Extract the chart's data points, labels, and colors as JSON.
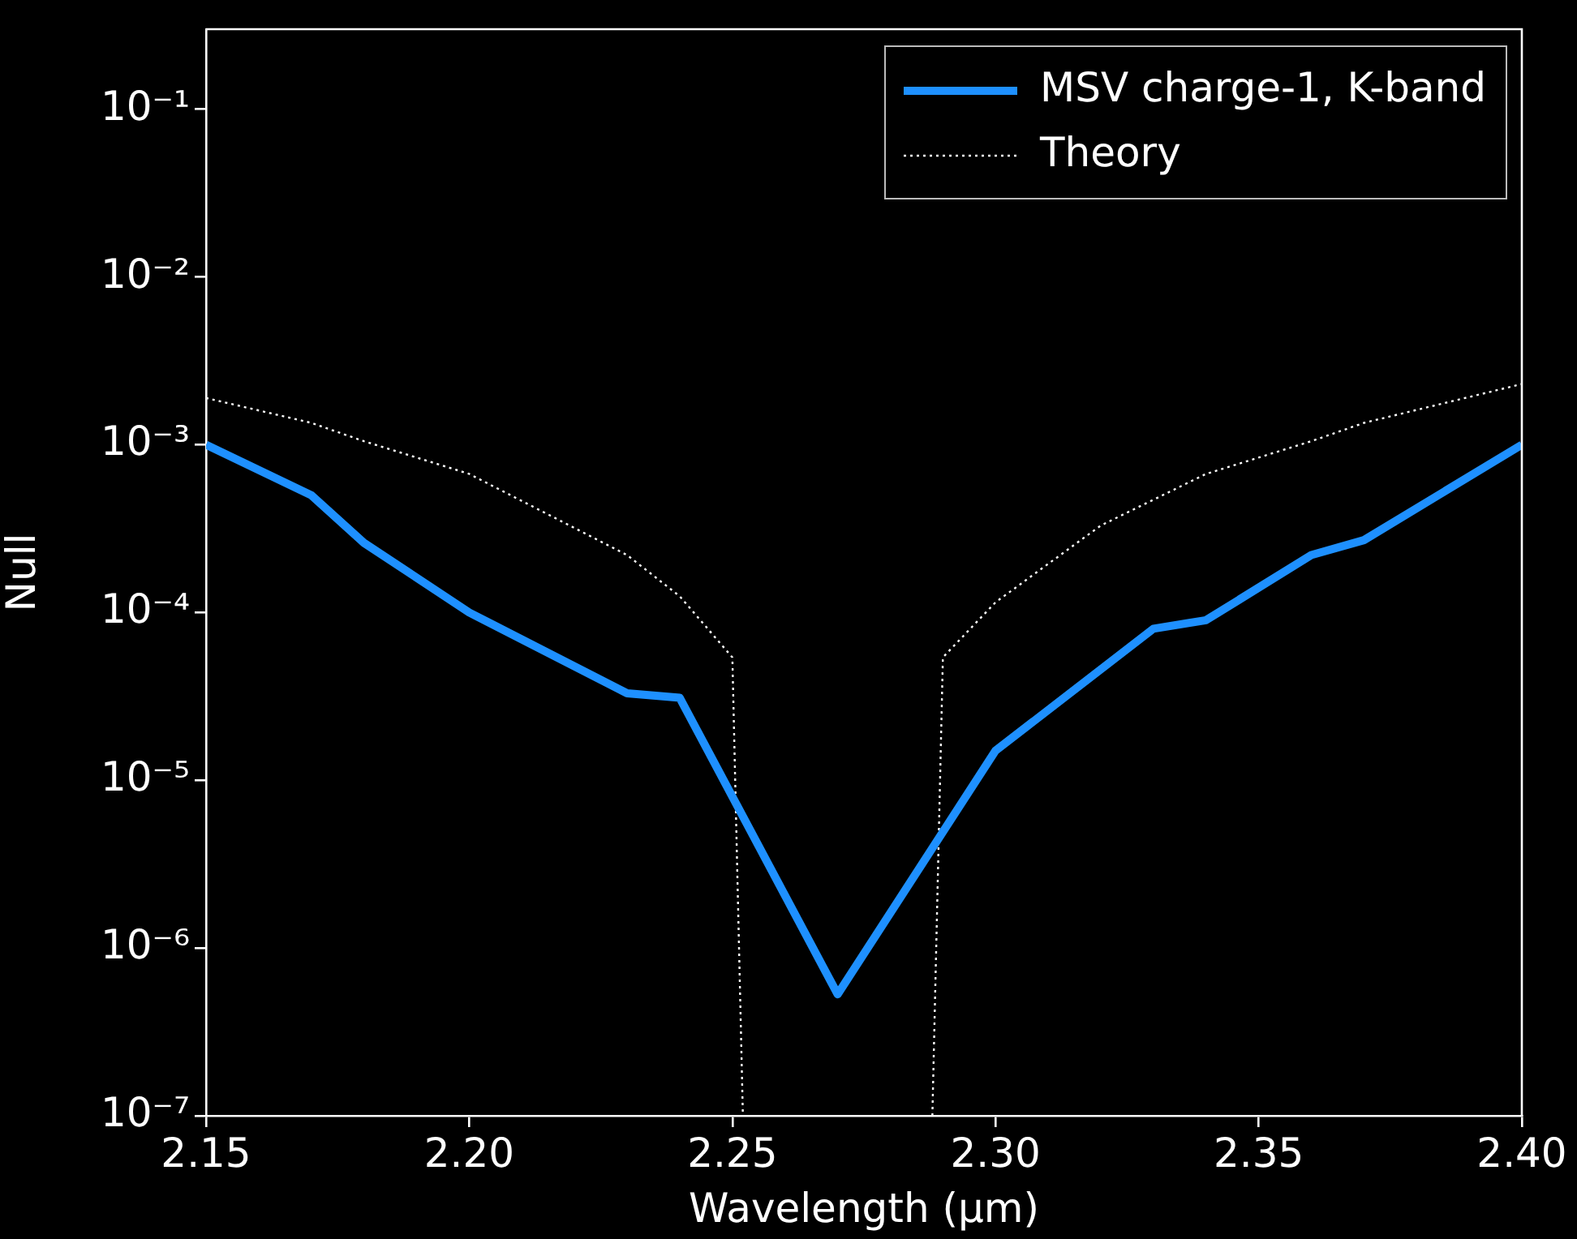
{
  "chart_data": {
    "type": "line",
    "xlabel": "Wavelength (μm)",
    "ylabel": "Null",
    "log": "y",
    "grid": false,
    "legend": "top right",
    "xlim": [
      2.15,
      2.4
    ],
    "xticks": [
      {
        "value": 2.15,
        "label": "2.15"
      },
      {
        "value": 2.2,
        "label": "2.20"
      },
      {
        "value": 2.25,
        "label": "2.25"
      },
      {
        "value": 2.3,
        "label": "2.30"
      },
      {
        "value": 2.35,
        "label": "2.35"
      },
      {
        "value": 2.4,
        "label": "2.40"
      }
    ],
    "ylim": [
      1e-07,
      0.3
    ],
    "yticks": [
      {
        "value": 1e-07,
        "label": "10⁻⁷"
      },
      {
        "value": 1e-06,
        "label": "10⁻⁶"
      },
      {
        "value": 1e-05,
        "label": "10⁻⁵"
      },
      {
        "value": 0.0001,
        "label": "10⁻⁴"
      },
      {
        "value": 0.001,
        "label": "10⁻³"
      },
      {
        "value": 0.01,
        "label": "10⁻²"
      },
      {
        "value": 0.1,
        "label": "10⁻¹"
      }
    ],
    "series": [
      {
        "name": "MSV charge-1, K-band",
        "color": "#1e90ff",
        "line_style": "solid",
        "x": [
          2.15,
          2.17,
          2.18,
          2.2,
          2.23,
          2.24,
          2.27,
          2.3,
          2.33,
          2.34,
          2.36,
          2.37,
          2.4
        ],
        "values": [
          0.001,
          0.0005,
          0.00026,
          0.0001,
          3.3e-05,
          3.1e-05,
          5.3e-07,
          1.5e-05,
          8e-05,
          9e-05,
          0.00022,
          0.00027,
          0.001
        ]
      },
      {
        "name": "Theory",
        "color": "#ffffff",
        "line_style": "dotted",
        "x": [
          2.15,
          2.17,
          2.18,
          2.2,
          2.23,
          2.24,
          2.25,
          2.252,
          2.27,
          2.288,
          2.29,
          2.3,
          2.32,
          2.34,
          2.36,
          2.37,
          2.4
        ],
        "values": [
          0.0019,
          0.00135,
          0.00105,
          0.00067,
          0.00022,
          0.000125,
          5.4e-05,
          1e-07,
          null,
          1e-07,
          5.4e-05,
          0.000115,
          0.00033,
          0.00067,
          0.00105,
          0.00135,
          0.0023
        ]
      }
    ]
  }
}
